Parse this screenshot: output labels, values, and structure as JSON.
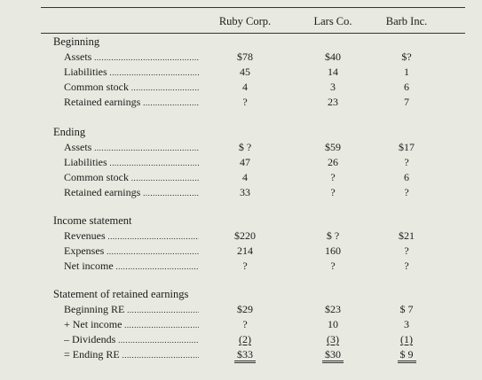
{
  "columns": [
    "Ruby Corp.",
    "Lars Co.",
    "Barb Inc."
  ],
  "sections": [
    {
      "title": "Beginning",
      "rows": [
        {
          "label": "Assets",
          "values": [
            "$78",
            "$40",
            "$?"
          ]
        },
        {
          "label": "Liabilities",
          "values": [
            "45",
            "14",
            "1"
          ]
        },
        {
          "label": "Common stock",
          "values": [
            "4",
            "3",
            "6"
          ]
        },
        {
          "label": "Retained earnings",
          "values": [
            "?",
            "23",
            "7"
          ]
        }
      ]
    },
    {
      "title": "Ending",
      "rows": [
        {
          "label": "Assets",
          "values": [
            "$ ?",
            "$59",
            "$17"
          ]
        },
        {
          "label": "Liabilities",
          "values": [
            "47",
            "26",
            "?"
          ]
        },
        {
          "label": "Common stock",
          "values": [
            "4",
            "?",
            "6"
          ]
        },
        {
          "label": "Retained earnings",
          "values": [
            "33",
            "?",
            "?"
          ]
        }
      ]
    },
    {
      "title": "Income statement",
      "rows": [
        {
          "label": "Revenues",
          "values": [
            "$220",
            "$ ?",
            "$21"
          ]
        },
        {
          "label": "Expenses",
          "values": [
            "214",
            "160",
            "?"
          ]
        },
        {
          "label": "Net income",
          "values": [
            "?",
            "?",
            "?"
          ]
        }
      ]
    },
    {
      "title": "Statement of retained earnings",
      "rows": [
        {
          "label": "Beginning RE",
          "values": [
            "$29",
            "$23",
            "$ 7"
          ]
        },
        {
          "label": "+ Net income",
          "values": [
            "?",
            "10",
            "3"
          ]
        },
        {
          "label": "– Dividends",
          "values": [
            "(2)",
            "(3)",
            "(1)"
          ],
          "underline": true
        },
        {
          "label": "= Ending RE",
          "values": [
            "$33",
            "$30",
            "$ 9"
          ],
          "double": true
        }
      ]
    }
  ]
}
